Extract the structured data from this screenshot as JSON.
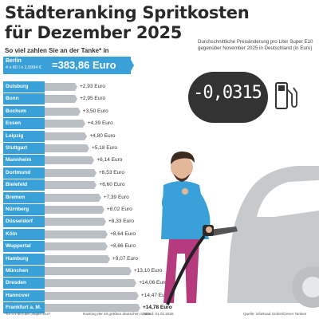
{
  "header": {
    "title_line1": "Städteranking Spritkosten",
    "title_line2": "für Dezember 2025",
    "subtitle": "So viel zahlen Sie an der Tanke* in"
  },
  "berlin": {
    "name": "Berlin",
    "formula": "4 x 60 l x 1,5994 €",
    "value": "=383,86 Euro"
  },
  "change": {
    "caption": "Durchschnittliche Preisänderung pro Liter Super E10 gegenüber November 2025 in Deutschland (in Euro)",
    "value": "-0,0315"
  },
  "footer": {
    "footnote": "*für 4 x 60 Liter „Super E10\"",
    "ranking_note": "Ranking der 20 größten deutschen Städte",
    "stand": "Stand: 01.01.2026",
    "source": "Quelle: infoRoad GmbH/Clever Tanken"
  },
  "colors": {
    "accent": "#3aa1d8",
    "bar": "#b9bfc4",
    "display": "#333333"
  },
  "chart_data": {
    "type": "bar",
    "orientation": "horizontal",
    "title": "Städteranking Spritkosten für Dezember 2025",
    "reference": {
      "category": "Berlin",
      "value": 383.86
    },
    "categories": [
      "Duisburg",
      "Bonn",
      "Bochum",
      "Essen",
      "Leipzig",
      "Stuttgart",
      "Mannheim",
      "Dortmund",
      "Bielefeld",
      "Bremen",
      "Nürnberg",
      "Düsseldorf",
      "Köln",
      "Wuppertal",
      "Hamburg",
      "München",
      "Dresden",
      "Hannover",
      "Frankfurt a. M."
    ],
    "values": [
      2.93,
      2.95,
      3.5,
      4.39,
      4.8,
      5.18,
      6.14,
      6.53,
      6.6,
      7.39,
      8.02,
      8.33,
      8.64,
      8.66,
      9.07,
      13.1,
      14.06,
      14.47,
      14.78
    ],
    "value_labels": [
      "+2,93 Euro",
      "+2,95 Euro",
      "+3,50 Euro",
      "+4,39 Euro",
      "+4,80 Euro",
      "+5,18 Euro",
      "+6,14 Euro",
      "+6,53 Euro",
      "+6,60 Euro",
      "+7,39 Euro",
      "+8,02 Euro",
      "+8,33 Euro",
      "+8,64 Euro",
      "+8,66 Euro",
      "+9,07 Euro",
      "+13,10 Euro",
      "+14,06 Euro",
      "+14,47 Euro",
      "+14,78 Euro"
    ]
  }
}
